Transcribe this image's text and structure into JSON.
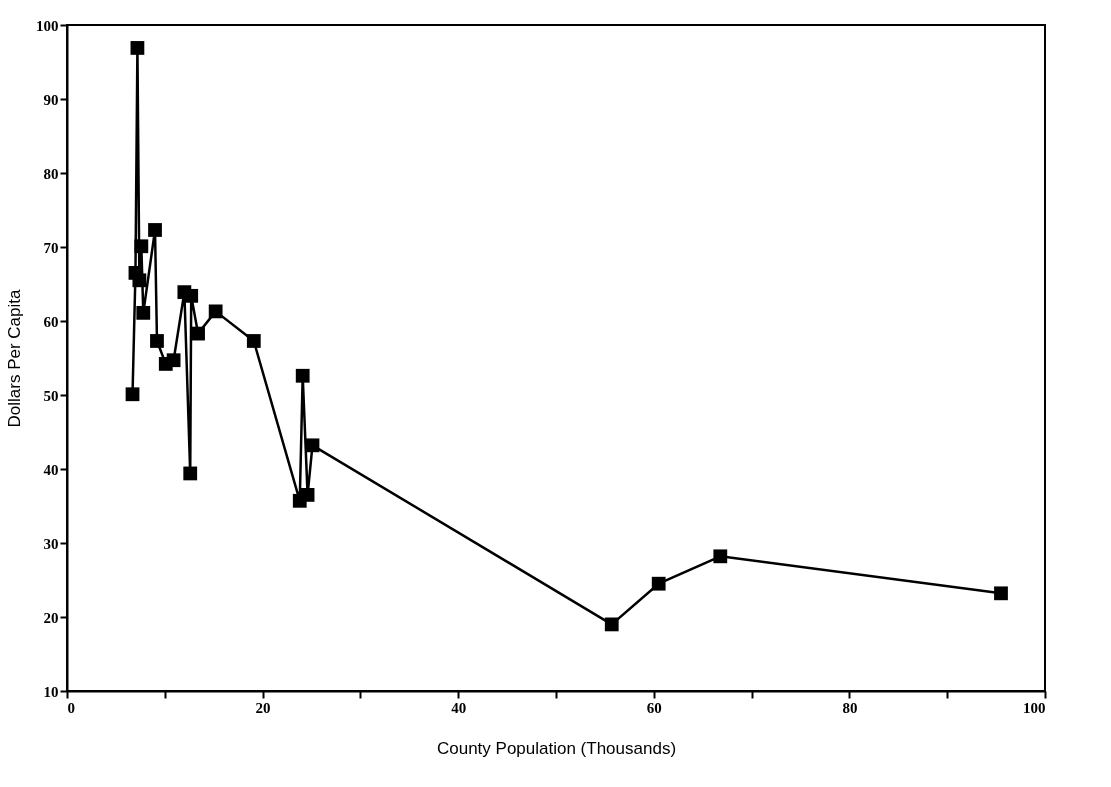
{
  "chart_data": {
    "type": "line",
    "xlabel": "County Population (Thousands)",
    "ylabel": "Dollars Per Capita",
    "x": [
      6.7,
      7.0,
      7.2,
      7.4,
      7.6,
      7.8,
      9.0,
      9.2,
      10.1,
      10.9,
      12.0,
      12.6,
      12.7,
      13.4,
      15.2,
      19.1,
      23.8,
      24.1,
      24.6,
      25.1,
      55.7,
      60.5,
      66.8,
      95.5
    ],
    "series": [
      {
        "color": "#000000",
        "values": [
          50.1,
          66.5,
          96.9,
          65.5,
          70.1,
          61.1,
          72.3,
          57.3,
          54.2,
          54.7,
          63.9,
          39.4,
          63.4,
          58.3,
          61.3,
          57.3,
          35.7,
          52.6,
          36.5,
          43.2,
          19.0,
          24.5,
          28.2,
          23.2
        ]
      }
    ],
    "xlim": [
      0,
      100
    ],
    "xticks": [
      0,
      {
        "value": 10,
        "label": null
      },
      20,
      {
        "value": 30,
        "label": null
      },
      40,
      {
        "value": 50,
        "label": null
      },
      60,
      {
        "value": 70,
        "label": null
      },
      80,
      {
        "value": 90,
        "label": null
      },
      100
    ],
    "ylim": [
      10,
      100
    ],
    "yticks": [
      10,
      20,
      30,
      40,
      50,
      60,
      70,
      80,
      90,
      100
    ],
    "grid": false,
    "marker": "square",
    "line_style": "solid"
  }
}
